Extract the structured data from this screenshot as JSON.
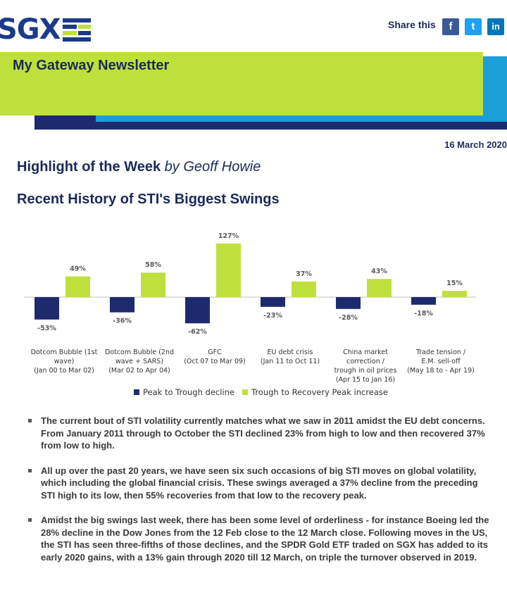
{
  "header": {
    "logo_text": "SGX",
    "share_label": "Share this",
    "social": [
      {
        "name": "facebook",
        "glyph": "f",
        "color": "#3b5998"
      },
      {
        "name": "twitter",
        "glyph": "t",
        "color": "#1da1f2"
      },
      {
        "name": "linkedin",
        "glyph": "in",
        "color": "#0077b5"
      }
    ]
  },
  "banner": {
    "title": "My Gateway Newsletter",
    "colors": {
      "green": "#bfe03c",
      "blue": "#1c9ed8",
      "navy": "#1e2a6e"
    }
  },
  "date": "16 March 2020",
  "highlight": {
    "bold": "Highlight of the Week",
    "by": "by Geoff Howie"
  },
  "section_title": "Recent History of STI's Biggest Swings",
  "chart_data": {
    "type": "bar",
    "categories": [
      [
        "Dotcom Bubble (1st",
        "wave)",
        "(Jan 00 to Mar 02)"
      ],
      [
        "Dotcom Bubble (2nd",
        "wave + SARS)",
        "(Mar 02 to Apr 04)"
      ],
      [
        "GFC",
        "(Oct 07 to Mar 09)"
      ],
      [
        "EU debt crisis",
        "(Jan 11 to Oct 11)"
      ],
      [
        "China market",
        "correction /",
        "trough in oil prices",
        "(Apr 15 to Jan 16)"
      ],
      [
        "Trade tension /",
        "E.M. sell-off",
        "(May 18 to - Apr 19)"
      ]
    ],
    "series": [
      {
        "name": "Peak to Trough decline",
        "color": "#1e2a6e",
        "values": [
          -53,
          -36,
          -62,
          -23,
          -28,
          -18
        ],
        "labels": [
          "-53%",
          "-36%",
          "-62%",
          "-23%",
          "-28%",
          "-18%"
        ]
      },
      {
        "name": "Trough to Recovery Peak increase",
        "color": "#bfe03c",
        "values": [
          49,
          58,
          127,
          37,
          43,
          15
        ],
        "labels": [
          "49%",
          "58%",
          "127%",
          "37%",
          "43%",
          "15%"
        ]
      }
    ],
    "legend": "bottom",
    "grid": false
  },
  "bullets": [
    "The current bout of STI volatility currently matches what we saw in 2011 amidst the EU debt concerns. From January 2011 through to October the STI declined 23% from high to low and then recovered 37% from low to high.",
    "All up over the past 20 years,  we have seen six such occasions of big STI moves on global volatility, which including the global financial crisis. These swings averaged a 37% decline from the preceding STI high to its low, then 55% recoveries from that low to the recovery peak.",
    "Amidst the big swings last week, there has been some level of orderliness - for instance Boeing led the 28% decline in the Dow Jones from the 12 Feb close to the 12 March close. Following moves in the US, the STI has seen three-fifths of those declines, and the SPDR Gold ETF traded on SGX has added to its early 2020 gains, with a 13% gain through 2020 till 12 March, on triple the turnover observed in 2019."
  ]
}
